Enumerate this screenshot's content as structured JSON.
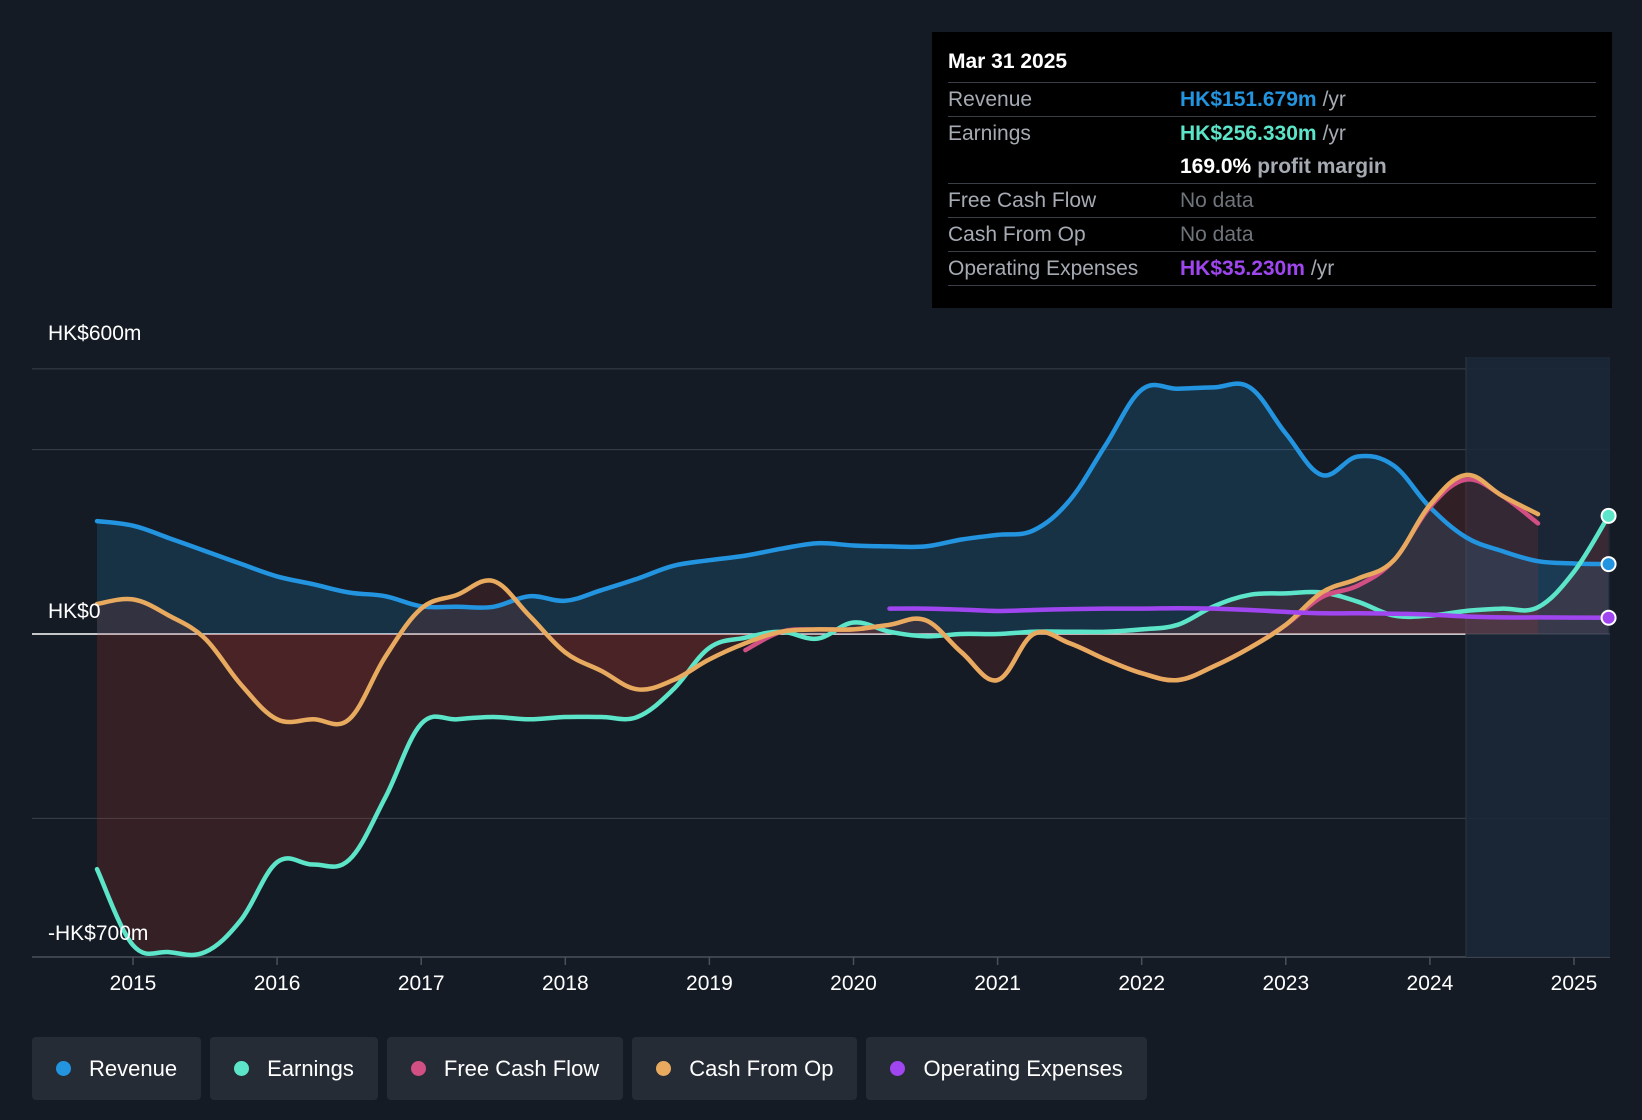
{
  "colors": {
    "background": "#151b24",
    "revenue": "#2394df",
    "earnings": "#5ce5c8",
    "free_cash_flow": "#d14f83",
    "cash_from_op": "#e8aa5e",
    "operating_expenses": "#a046f0"
  },
  "tooltip": {
    "date": "Mar 31 2025",
    "rows": [
      {
        "label": "Revenue",
        "value": "HK$151.679m",
        "unit": "/yr"
      },
      {
        "label": "Earnings",
        "value": "HK$256.330m",
        "unit": "/yr"
      },
      {
        "label": "",
        "value": "169.0%",
        "unit": "profit margin"
      },
      {
        "label": "Free Cash Flow",
        "value": "No data",
        "unit": ""
      },
      {
        "label": "Cash From Op",
        "value": "No data",
        "unit": ""
      },
      {
        "label": "Operating Expenses",
        "value": "HK$35.230m",
        "unit": "/yr"
      }
    ]
  },
  "legend": [
    {
      "label": "Revenue",
      "color": "#2394df"
    },
    {
      "label": "Earnings",
      "color": "#5ce5c8"
    },
    {
      "label": "Free Cash Flow",
      "color": "#d14f83"
    },
    {
      "label": "Cash From Op",
      "color": "#e8aa5e"
    },
    {
      "label": "Operating Expenses",
      "color": "#a046f0"
    }
  ],
  "chart_data": {
    "type": "line",
    "title": "",
    "xlabel": "",
    "ylabel": "",
    "ylim": [
      -700,
      600
    ],
    "y_tick_labels": [
      {
        "value": 600,
        "label": "HK$600m"
      },
      {
        "value": 0,
        "label": "HK$0"
      },
      {
        "value": -700,
        "label": "-HK$700m"
      }
    ],
    "x_ticks": [
      2015,
      2016,
      2017,
      2018,
      2019,
      2020,
      2021,
      2022,
      2023,
      2024,
      2025
    ],
    "x_tick_labels": [
      "2015",
      "2016",
      "2017",
      "2018",
      "2019",
      "2020",
      "2021",
      "2022",
      "2023",
      "2024",
      "2025"
    ],
    "xlim": [
      2014.32,
      2025.24
    ],
    "forecast_start": 2024.25,
    "series": [
      {
        "name": "Revenue",
        "color": "#2394df",
        "fill": true,
        "x": [
          2014.75,
          2015.0,
          2015.25,
          2015.5,
          2015.75,
          2016.0,
          2016.25,
          2016.5,
          2016.75,
          2017.0,
          2017.25,
          2017.5,
          2017.75,
          2018.0,
          2018.25,
          2018.5,
          2018.75,
          2019.0,
          2019.25,
          2019.5,
          2019.75,
          2020.0,
          2020.25,
          2020.5,
          2020.75,
          2021.0,
          2021.25,
          2021.5,
          2021.75,
          2022.0,
          2022.25,
          2022.5,
          2022.75,
          2023.0,
          2023.25,
          2023.5,
          2023.75,
          2024.0,
          2024.25,
          2024.5,
          2024.75,
          2025.0,
          2025.24
        ],
        "values": [
          245,
          235,
          208,
          180,
          152,
          125,
          108,
          90,
          82,
          60,
          59,
          59,
          82,
          72,
          95,
          120,
          148,
          160,
          170,
          185,
          197,
          192,
          190,
          190,
          205,
          215,
          225,
          290,
          410,
          530,
          532,
          535,
          535,
          435,
          345,
          385,
          365,
          275,
          210,
          180,
          158,
          153,
          151.679
        ]
      },
      {
        "name": "Earnings",
        "color": "#5ce5c8",
        "fill": true,
        "x": [
          2014.75,
          2015.0,
          2015.25,
          2015.5,
          2015.75,
          2016.0,
          2016.25,
          2016.5,
          2016.75,
          2017.0,
          2017.25,
          2017.5,
          2017.75,
          2018.0,
          2018.25,
          2018.5,
          2018.75,
          2019.0,
          2019.25,
          2019.5,
          2019.75,
          2020.0,
          2020.25,
          2020.5,
          2020.75,
          2021.0,
          2021.25,
          2021.5,
          2021.75,
          2022.0,
          2022.25,
          2022.5,
          2022.75,
          2023.0,
          2023.25,
          2023.5,
          2023.75,
          2024.0,
          2024.25,
          2024.5,
          2024.75,
          2025.0,
          2025.24
        ],
        "values": [
          -510,
          -675,
          -690,
          -690,
          -620,
          -495,
          -500,
          -490,
          -355,
          -195,
          -185,
          -180,
          -185,
          -180,
          -180,
          -180,
          -120,
          -30,
          -8,
          5,
          -10,
          25,
          5,
          -5,
          0,
          0,
          5,
          5,
          5,
          10,
          20,
          60,
          85,
          88,
          90,
          70,
          40,
          40,
          50,
          55,
          58,
          135,
          256.33
        ]
      },
      {
        "name": "Free Cash Flow",
        "color": "#d14f83",
        "fill": false,
        "x": [
          2019.25,
          2019.5,
          2019.75,
          2020.0,
          2020.25,
          2020.5,
          2020.75,
          2021.0,
          2021.25,
          2021.5,
          2021.75,
          2022.0,
          2022.25,
          2022.5,
          2022.75,
          2023.0,
          2023.25,
          2023.5,
          2023.75,
          2024.0,
          2024.25,
          2024.5,
          2024.75
        ],
        "values": [
          -35,
          5,
          10,
          10,
          20,
          30,
          -40,
          -100,
          0,
          -20,
          -55,
          -85,
          -100,
          -70,
          -30,
          20,
          80,
          105,
          160,
          275,
          335,
          300,
          240
        ]
      },
      {
        "name": "Cash From Op",
        "color": "#e8aa5e",
        "fill": true,
        "x": [
          2014.75,
          2015.0,
          2015.25,
          2015.5,
          2015.75,
          2016.0,
          2016.25,
          2016.5,
          2016.75,
          2017.0,
          2017.25,
          2017.5,
          2017.75,
          2018.0,
          2018.25,
          2018.5,
          2018.75,
          2019.0,
          2019.25,
          2019.5,
          2019.75,
          2020.0,
          2020.25,
          2020.5,
          2020.75,
          2021.0,
          2021.25,
          2021.5,
          2021.75,
          2022.0,
          2022.25,
          2022.5,
          2022.75,
          2023.0,
          2023.25,
          2023.5,
          2023.75,
          2024.0,
          2024.25,
          2024.5,
          2024.75
        ],
        "values": [
          65,
          75,
          40,
          -10,
          -110,
          -185,
          -185,
          -185,
          -50,
          55,
          85,
          115,
          40,
          -40,
          -80,
          -120,
          -100,
          -55,
          -20,
          5,
          10,
          10,
          20,
          30,
          -40,
          -100,
          0,
          -20,
          -55,
          -85,
          -100,
          -70,
          -30,
          20,
          90,
          120,
          160,
          280,
          345,
          300,
          260
        ]
      },
      {
        "name": "Operating Expenses",
        "color": "#a046f0",
        "fill": false,
        "x": [
          2020.25,
          2020.5,
          2020.75,
          2021.0,
          2021.25,
          2021.5,
          2021.75,
          2022.0,
          2022.25,
          2022.5,
          2022.75,
          2023.0,
          2023.25,
          2023.5,
          2023.75,
          2024.0,
          2024.25,
          2024.5,
          2024.75,
          2025.0,
          2025.24
        ],
        "values": [
          55,
          55,
          53,
          50,
          52,
          54,
          55,
          55,
          56,
          55,
          52,
          48,
          45,
          45,
          44,
          42,
          38,
          36,
          36,
          35.5,
          35.23
        ]
      }
    ]
  }
}
